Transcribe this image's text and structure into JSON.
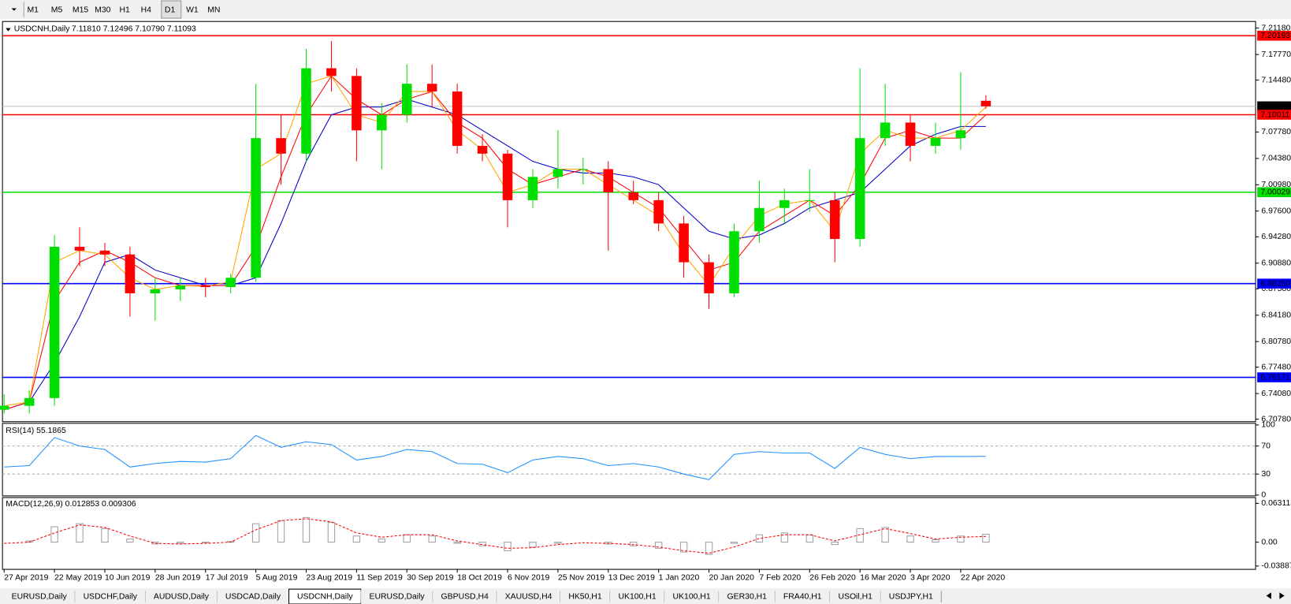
{
  "toolbar": {
    "timeframes": [
      "M1",
      "M5",
      "M15",
      "M30",
      "H1",
      "H4",
      "D1",
      "W1",
      "MN"
    ],
    "active": "D1"
  },
  "tabs": {
    "items": [
      "EURUSD,Daily",
      "USDCHF,Daily",
      "AUDUSD,Daily",
      "USDCAD,Daily",
      "USDCNH,Daily",
      "EURUSD,Daily",
      "GBPUSD,H4",
      "XAUUSD,H4",
      "HK50,H1",
      "UK100,H1",
      "UK100,H1",
      "GER30,H1",
      "FRA40,H1",
      "USOil,H1",
      "USDJPY,H1"
    ],
    "active": "USDCNH,Daily"
  },
  "chart_data": [
    {
      "type": "candlestick",
      "title": "USDCNH,Daily",
      "subtitle": "7.11810 7.12496 7.10790 7.11093",
      "x": [
        0,
        7,
        14,
        21,
        28,
        35,
        42,
        49,
        56,
        63,
        70,
        77,
        84,
        91,
        98,
        105,
        112,
        119,
        126,
        133,
        140,
        147,
        154,
        161,
        168,
        175,
        182,
        189,
        196,
        203,
        210,
        217,
        224,
        231,
        238,
        245,
        252,
        259,
        266,
        273
      ],
      "open": [
        6.72,
        6.725,
        6.735,
        6.93,
        6.925,
        6.92,
        6.87,
        6.875,
        6.88,
        6.878,
        6.89,
        7.07,
        7.05,
        7.16,
        7.15,
        7.08,
        7.1,
        7.14,
        7.13,
        7.06,
        7.05,
        6.99,
        7.02,
        7.03,
        7.03,
        7.0,
        6.99,
        6.96,
        6.91,
        6.87,
        6.95,
        6.98,
        6.99,
        6.99,
        6.94,
        7.07,
        7.09,
        7.06,
        7.07,
        7.1181
      ],
      "high": [
        6.74,
        6.745,
        6.945,
        6.955,
        6.935,
        6.93,
        6.89,
        6.89,
        6.89,
        6.895,
        7.14,
        7.1,
        7.185,
        7.195,
        7.16,
        7.115,
        7.165,
        7.165,
        7.14,
        7.075,
        7.055,
        7.03,
        7.08,
        7.045,
        7.04,
        7.015,
        7.0,
        6.97,
        6.92,
        6.96,
        7.015,
        7.005,
        7.03,
        7.0,
        7.16,
        7.14,
        7.1,
        7.09,
        7.155,
        7.12496
      ],
      "low": [
        6.715,
        6.715,
        6.725,
        6.905,
        6.905,
        6.84,
        6.835,
        6.86,
        6.865,
        6.87,
        6.885,
        7.01,
        7.04,
        7.13,
        7.04,
        7.03,
        7.09,
        7.11,
        7.05,
        7.04,
        6.955,
        6.98,
        7.005,
        7.01,
        6.925,
        6.985,
        6.95,
        6.89,
        6.85,
        6.865,
        6.935,
        6.96,
        6.975,
        6.91,
        6.93,
        7.06,
        7.04,
        7.05,
        7.055,
        7.1079
      ],
      "close": [
        6.725,
        6.735,
        6.93,
        6.925,
        6.92,
        6.87,
        6.875,
        6.88,
        6.878,
        6.89,
        7.07,
        7.05,
        7.16,
        7.15,
        7.08,
        7.1,
        7.14,
        7.13,
        7.06,
        7.05,
        6.99,
        7.02,
        7.03,
        7.03,
        7.0,
        6.99,
        6.96,
        6.91,
        6.87,
        6.95,
        6.98,
        6.99,
        6.99,
        6.94,
        7.07,
        7.09,
        7.06,
        7.07,
        7.08,
        7.11093
      ],
      "up_color": "#00e000",
      "down_color": "#ff0000",
      "overlays": [
        {
          "color": "#0000cc",
          "values": [
            6.72,
            6.73,
            6.78,
            6.84,
            6.91,
            6.92,
            6.9,
            6.89,
            6.88,
            6.88,
            6.89,
            6.96,
            7.04,
            7.1,
            7.11,
            7.11,
            7.12,
            7.11,
            7.1,
            7.08,
            7.06,
            7.04,
            7.03,
            7.025,
            7.025,
            7.02,
            7.01,
            6.98,
            6.95,
            6.94,
            6.945,
            6.96,
            6.98,
            6.99,
            7.0,
            7.03,
            7.06,
            7.075,
            7.085,
            7.085
          ]
        },
        {
          "color": "#ff0000",
          "values": [
            6.72,
            6.73,
            6.86,
            6.91,
            6.925,
            6.91,
            6.89,
            6.88,
            6.88,
            6.88,
            6.93,
            7.02,
            7.1,
            7.15,
            7.12,
            7.1,
            7.12,
            7.13,
            7.09,
            7.07,
            7.03,
            7.01,
            7.02,
            7.03,
            7.02,
            7.0,
            6.98,
            6.94,
            6.9,
            6.91,
            6.95,
            6.97,
            6.99,
            6.97,
            7.01,
            7.07,
            7.08,
            7.07,
            7.07,
            7.1
          ]
        },
        {
          "color": "#ffa500",
          "values": [
            6.725,
            6.73,
            6.91,
            6.925,
            6.92,
            6.89,
            6.875,
            6.88,
            6.879,
            6.885,
            7.03,
            7.05,
            7.14,
            7.15,
            7.1,
            7.09,
            7.13,
            7.13,
            7.08,
            7.055,
            7.0,
            7.01,
            7.03,
            7.03,
            7.01,
            6.99,
            6.97,
            6.92,
            6.88,
            6.93,
            6.97,
            6.985,
            6.99,
            6.95,
            7.05,
            7.08,
            7.07,
            7.07,
            7.08,
            7.11
          ]
        }
      ],
      "levels": [
        {
          "value": 7.20193,
          "label": "7.20193",
          "color": "#ff0000"
        },
        {
          "value": 7.11093,
          "label": "7.11093",
          "color": "#c0c0c0"
        },
        {
          "value": 7.10011,
          "label": "7.10011",
          "color": "#ff0000"
        },
        {
          "value": 7.00029,
          "label": "7.00029",
          "color": "#00e000"
        },
        {
          "value": 6.8825,
          "label": "6.88250",
          "color": "#0000ff"
        },
        {
          "value": 6.76171,
          "label": "6.76171",
          "color": "#0000ff"
        }
      ],
      "xlim": [
        0,
        348
      ],
      "xticks": [
        {
          "value": 0,
          "label": "27 Apr 2019"
        },
        {
          "value": 14,
          "label": "22 May 2019"
        },
        {
          "value": 28,
          "label": "10 Jun 2019"
        },
        {
          "value": 42,
          "label": "28 Jun 2019"
        },
        {
          "value": 56,
          "label": "17 Jul 2019"
        },
        {
          "value": 70,
          "label": "5 Aug 2019"
        },
        {
          "value": 84,
          "label": "23 Aug 2019"
        },
        {
          "value": 98,
          "label": "11 Sep 2019"
        },
        {
          "value": 112,
          "label": "30 Sep 2019"
        },
        {
          "value": 126,
          "label": "18 Oct 2019"
        },
        {
          "value": 140,
          "label": "6 Nov 2019"
        },
        {
          "value": 154,
          "label": "25 Nov 2019"
        },
        {
          "value": 168,
          "label": "13 Dec 2019"
        },
        {
          "value": 182,
          "label": "1 Jan 2020"
        },
        {
          "value": 196,
          "label": "20 Jan 2020"
        },
        {
          "value": 210,
          "label": "7 Feb 2020"
        },
        {
          "value": 224,
          "label": "26 Feb 2020"
        },
        {
          "value": 238,
          "label": "16 Mar 2020"
        },
        {
          "value": 252,
          "label": "3 Apr 2020"
        },
        {
          "value": 266,
          "label": "22 Apr 2020"
        }
      ],
      "ylim": [
        6.7078,
        7.2118
      ],
      "yticks": [
        {
          "value": 7.2118,
          "label": "7.21180"
        },
        {
          "value": 7.1777,
          "label": "7.17770"
        },
        {
          "value": 7.1448,
          "label": "7.14480"
        },
        {
          "value": 7.0778,
          "label": "7.07780"
        },
        {
          "value": 7.0438,
          "label": "7.04380"
        },
        {
          "value": 7.0098,
          "label": "7.00980"
        },
        {
          "value": 6.976,
          "label": "6.97600"
        },
        {
          "value": 6.9428,
          "label": "6.94280"
        },
        {
          "value": 6.9088,
          "label": "6.90880"
        },
        {
          "value": 6.8758,
          "label": "6.87580"
        },
        {
          "value": 6.8418,
          "label": "6.84180"
        },
        {
          "value": 6.8078,
          "label": "6.80780"
        },
        {
          "value": 6.7748,
          "label": "6.77480"
        },
        {
          "value": 6.7408,
          "label": "6.74080"
        },
        {
          "value": 6.7078,
          "label": "6.70780"
        }
      ]
    },
    {
      "type": "line",
      "title": "RSI(14) 55.1865",
      "color": "#1e90ff",
      "values": [
        40,
        42,
        82,
        70,
        65,
        40,
        45,
        48,
        47,
        52,
        85,
        68,
        76,
        72,
        50,
        55,
        65,
        62,
        45,
        44,
        32,
        50,
        55,
        52,
        42,
        45,
        40,
        30,
        22,
        58,
        62,
        60,
        60,
        38,
        68,
        58,
        52,
        55,
        55,
        55.1865
      ],
      "ylim": [
        0,
        100
      ],
      "yticks": [
        100,
        70,
        30,
        0
      ],
      "levels": [
        70,
        30
      ]
    },
    {
      "type": "macd",
      "title": "MACD(12,26,9) 0.012853 0.009306",
      "hist_color": "#a0a0a0",
      "signal_color": "#ff0000",
      "histogram": [
        0.0,
        0.002,
        0.025,
        0.03,
        0.022,
        0.005,
        -0.003,
        -0.002,
        -0.001,
        0.001,
        0.03,
        0.035,
        0.04,
        0.032,
        0.01,
        0.005,
        0.012,
        0.01,
        -0.002,
        -0.006,
        -0.014,
        -0.008,
        -0.002,
        0.0,
        -0.003,
        -0.006,
        -0.01,
        -0.016,
        -0.02,
        -0.002,
        0.012,
        0.015,
        0.012,
        -0.004,
        0.022,
        0.024,
        0.01,
        0.004,
        0.01,
        0.012853
      ],
      "signal": [
        -0.002,
        0.0,
        0.015,
        0.028,
        0.024,
        0.01,
        -0.002,
        -0.003,
        -0.002,
        0.0,
        0.02,
        0.035,
        0.038,
        0.033,
        0.015,
        0.008,
        0.012,
        0.012,
        0.002,
        -0.004,
        -0.01,
        -0.009,
        -0.004,
        -0.001,
        -0.002,
        -0.004,
        -0.008,
        -0.014,
        -0.018,
        -0.008,
        0.006,
        0.012,
        0.012,
        0.002,
        0.012,
        0.022,
        0.014,
        0.005,
        0.008,
        0.009306
      ],
      "ylim": [
        -0.038872,
        0.063113
      ],
      "yticks": [
        0.063113,
        {
          "value": 0,
          "label": "0.00"
        },
        -0.038872
      ]
    }
  ]
}
